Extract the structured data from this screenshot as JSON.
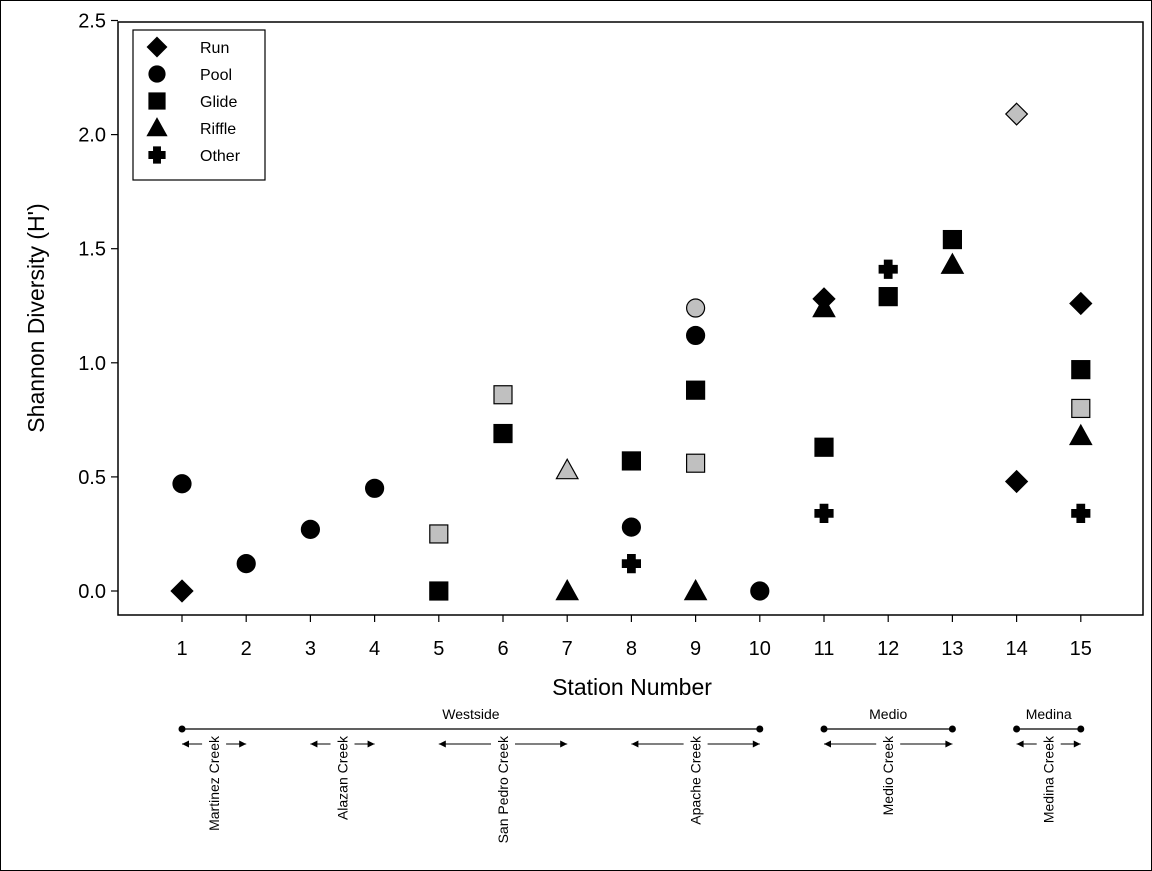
{
  "chart_data": {
    "type": "scatter",
    "xlabel": "Station Number",
    "ylabel": "Shannon Diversity (H')",
    "xlim": [
      0,
      16
    ],
    "ylim": [
      -0.15,
      2.5
    ],
    "x_ticks": [
      "1",
      "2",
      "3",
      "4",
      "5",
      "6",
      "7",
      "8",
      "9",
      "10",
      "11",
      "12",
      "13",
      "14",
      "15"
    ],
    "y_ticks": [
      "0.0",
      "0.5",
      "1.0",
      "1.5",
      "2.0",
      "2.5"
    ],
    "legend_position": "top-left",
    "colors": {
      "filled": "#000000",
      "gray": "#c0c0c0"
    },
    "series": [
      {
        "name": "Run",
        "marker": "diamond",
        "points": [
          {
            "x": 1,
            "y": 0.0,
            "fill": "black"
          },
          {
            "x": 11,
            "y": 1.28,
            "fill": "black"
          },
          {
            "x": 14,
            "y": 2.09,
            "fill": "gray"
          },
          {
            "x": 14,
            "y": 0.48,
            "fill": "black"
          },
          {
            "x": 15,
            "y": 1.26,
            "fill": "black"
          }
        ]
      },
      {
        "name": "Pool",
        "marker": "circle",
        "points": [
          {
            "x": 1,
            "y": 0.47,
            "fill": "black"
          },
          {
            "x": 2,
            "y": 0.12,
            "fill": "black"
          },
          {
            "x": 3,
            "y": 0.27,
            "fill": "black"
          },
          {
            "x": 4,
            "y": 0.45,
            "fill": "black"
          },
          {
            "x": 8,
            "y": 0.28,
            "fill": "black"
          },
          {
            "x": 9,
            "y": 1.24,
            "fill": "gray"
          },
          {
            "x": 9,
            "y": 1.12,
            "fill": "black"
          },
          {
            "x": 10,
            "y": 0.0,
            "fill": "black"
          }
        ]
      },
      {
        "name": "Glide",
        "marker": "square",
        "points": [
          {
            "x": 5,
            "y": 0.25,
            "fill": "gray"
          },
          {
            "x": 5,
            "y": 0.0,
            "fill": "black"
          },
          {
            "x": 6,
            "y": 0.86,
            "fill": "gray"
          },
          {
            "x": 6,
            "y": 0.69,
            "fill": "black"
          },
          {
            "x": 8,
            "y": 0.57,
            "fill": "black"
          },
          {
            "x": 9,
            "y": 0.88,
            "fill": "black"
          },
          {
            "x": 9,
            "y": 0.56,
            "fill": "gray"
          },
          {
            "x": 11,
            "y": 0.63,
            "fill": "black"
          },
          {
            "x": 12,
            "y": 1.29,
            "fill": "black"
          },
          {
            "x": 13,
            "y": 1.54,
            "fill": "black"
          },
          {
            "x": 15,
            "y": 0.97,
            "fill": "black"
          },
          {
            "x": 15,
            "y": 0.8,
            "fill": "gray"
          }
        ]
      },
      {
        "name": "Riffle",
        "marker": "triangle",
        "points": [
          {
            "x": 7,
            "y": 0.53,
            "fill": "gray"
          },
          {
            "x": 7,
            "y": 0.0,
            "fill": "black"
          },
          {
            "x": 9,
            "y": 0.0,
            "fill": "black"
          },
          {
            "x": 11,
            "y": 1.24,
            "fill": "black"
          },
          {
            "x": 13,
            "y": 1.43,
            "fill": "black"
          },
          {
            "x": 15,
            "y": 0.68,
            "fill": "black"
          }
        ]
      },
      {
        "name": "Other",
        "marker": "cross",
        "points": [
          {
            "x": 8,
            "y": 0.12,
            "fill": "black"
          },
          {
            "x": 11,
            "y": 0.34,
            "fill": "black"
          },
          {
            "x": 12,
            "y": 1.41,
            "fill": "black"
          },
          {
            "x": 15,
            "y": 0.34,
            "fill": "black"
          }
        ]
      }
    ],
    "regions": [
      {
        "label": "Westside",
        "from": 1,
        "to": 10
      },
      {
        "label": "Medio",
        "from": 11,
        "to": 13
      },
      {
        "label": "Medina",
        "from": 14,
        "to": 15
      }
    ],
    "creeks": [
      {
        "label": "Martinez Creek",
        "center": 1.5,
        "arrow_from": 1,
        "arrow_to": 2
      },
      {
        "label": "Alazan Creek",
        "center": 3.5,
        "arrow_from": 3,
        "arrow_to": 4
      },
      {
        "label": "San Pedro Creek",
        "center": 6,
        "arrow_from": 5,
        "arrow_to": 7
      },
      {
        "label": "Apache Creek",
        "center": 9,
        "arrow_from": 8,
        "arrow_to": 10
      },
      {
        "label": "Medio Creek",
        "center": 12,
        "arrow_from": 11,
        "arrow_to": 13
      },
      {
        "label": "Medina Creek",
        "center": 14.5,
        "arrow_from": 14,
        "arrow_to": 15
      }
    ]
  }
}
